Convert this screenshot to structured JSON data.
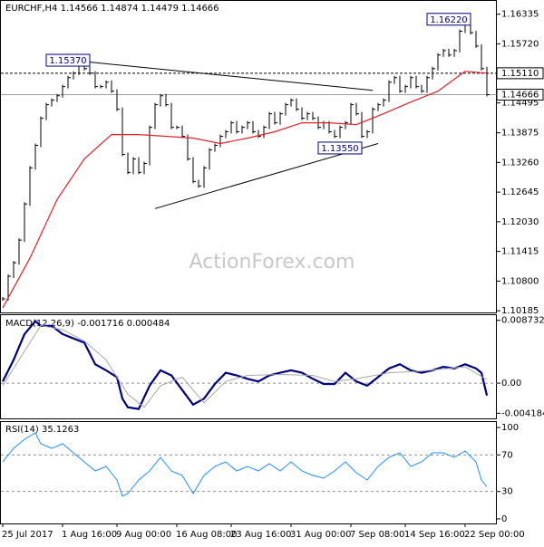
{
  "chart_data": [
    {
      "type": "price-bars",
      "title": "EURCHF,H4 1.14566 1.14874 1.14479 1.14666",
      "watermark": "ActionForex.com",
      "categories": [
        "25 Jul 2017",
        null,
        null,
        null,
        null,
        null,
        null,
        null,
        null,
        null,
        null,
        "1 Aug 16:00",
        null,
        null,
        null,
        null,
        null,
        null,
        null,
        null,
        null,
        "9 Aug 00:00",
        null,
        null,
        null,
        null,
        null,
        null,
        null,
        null,
        null,
        null,
        "16 Aug 08:00",
        null,
        null,
        null,
        null,
        null,
        null,
        null,
        null,
        null,
        "23 Aug 16:00",
        null,
        null,
        null,
        null,
        null,
        null,
        null,
        null,
        null,
        null,
        "31 Aug 00:00",
        null,
        null,
        null,
        null,
        null,
        null,
        null,
        null,
        null,
        null,
        "7 Sep 08:00",
        null,
        null,
        null,
        null,
        null,
        null,
        null,
        null,
        null,
        "14 Sep 16:00",
        null,
        null,
        null,
        null,
        null,
        null,
        null,
        null,
        null,
        null,
        "22 Sep 00:00",
        null,
        null,
        null,
        null
      ],
      "values": [
        1.10432,
        1.109,
        1.11181,
        1.11649,
        1.12398,
        1.13147,
        1.13615,
        1.14176,
        1.14457,
        1.14551,
        1.14644,
        1.14832,
        1.15019,
        1.15112,
        1.153,
        1.15206,
        1.15112,
        1.14832,
        1.14832,
        1.14925,
        1.14738,
        1.14364,
        1.13428,
        1.13053,
        1.13334,
        1.13053,
        1.1324,
        1.13989,
        1.14457,
        1.14644,
        1.14457,
        1.13989,
        1.13989,
        1.13802,
        1.13334,
        1.12866,
        1.12772,
        1.13147,
        1.13521,
        1.13615,
        1.13802,
        1.13896,
        1.14083,
        1.13896,
        1.13989,
        1.14083,
        1.13896,
        1.13802,
        1.13989,
        1.1427,
        1.14083,
        1.1427,
        1.14457,
        1.14551,
        1.14364,
        1.14176,
        1.1427,
        1.14176,
        1.13989,
        1.14083,
        1.13896,
        1.13802,
        1.13989,
        1.14083,
        1.14457,
        1.1427,
        1.13802,
        1.13896,
        1.14364,
        1.14457,
        1.14551,
        1.14925,
        1.15019,
        1.14738,
        1.14832,
        1.15019,
        1.14832,
        1.14738,
        1.15019,
        1.15206,
        1.15487,
        1.1558,
        1.15487,
        1.1558,
        1.1598,
        1.1612,
        1.1595,
        1.15674,
        1.15206,
        1.14666
      ],
      "color": "#000000",
      "ma": {
        "color": "#e0232a",
        "x": [
          0,
          5,
          10,
          15,
          20,
          25,
          30,
          35,
          40,
          45,
          50,
          55,
          60,
          65,
          70,
          75,
          80,
          85,
          89
        ],
        "values": [
          1.10245,
          1.11275,
          1.12492,
          1.13334,
          1.13839,
          1.13839,
          1.13802,
          1.13765,
          1.13652,
          1.13765,
          1.13896,
          1.14083,
          1.14083,
          1.14045,
          1.1427,
          1.14513,
          1.14738,
          1.1515,
          1.15112
        ]
      },
      "trendlines": [
        {
          "x": [
            13,
            68
          ],
          "values": [
            1.15375,
            1.14757
          ]
        },
        {
          "x": [
            28,
            69
          ],
          "values": [
            1.12304,
            1.13652
          ]
        }
      ],
      "annotations": [
        {
          "x": 12,
          "value": 1.1537,
          "label": "1.15370"
        },
        {
          "x": 62,
          "value": 1.1355,
          "label": "1.13550"
        },
        {
          "x": 82,
          "value": 1.1622,
          "label": "1.16220"
        }
      ],
      "levels": [
        {
          "value": 1.1511,
          "label": "1.15110",
          "dashed": true
        },
        {
          "value": 1.14666,
          "dashed": false
        }
      ],
      "ylim": [
        1.1015,
        1.1661
      ],
      "yticks": [
        1.16335,
        {
          "value": 1.1572,
          "label": "1.15720"
        },
        1.14495,
        1.13875,
        {
          "value": 1.1326,
          "label": "1.13260"
        },
        1.12645,
        {
          "value": 1.1203,
          "label": "1.12030"
        },
        1.11415,
        {
          "value": 1.108,
          "label": "1.10800"
        },
        1.10185
      ],
      "grid": false
    },
    {
      "type": "line",
      "title": "MACD(12,26,9) -0.001716 0.000484",
      "series": [
        {
          "color": "#000080",
          "width": 2.2,
          "x": [
            0,
            2,
            4,
            6,
            7,
            9,
            11,
            13,
            15,
            17,
            19,
            21,
            22,
            23,
            25,
            27,
            29,
            31,
            33,
            35,
            37,
            39,
            41,
            43,
            45,
            47,
            49,
            51,
            53,
            55,
            57,
            59,
            61,
            63,
            65,
            67,
            69,
            71,
            73,
            75,
            77,
            79,
            81,
            83,
            85,
            87,
            88,
            89
          ],
          "values": [
            0.00024,
            0.00323,
            0.00682,
            0.00861,
            0.00796,
            0.00796,
            0.00682,
            0.00622,
            0.00562,
            0.00263,
            0.00179,
            0.00084,
            -0.00215,
            -0.00335,
            -0.00359,
            -0.00036,
            0.00179,
            0.00108,
            -0.00096,
            -0.00299,
            -0.00215,
            -0.00012,
            0.00144,
            0.00108,
            0.0006,
            0.00024,
            0.00108,
            0.00144,
            0.00179,
            0.00144,
            0.0006,
            -0.00012,
            -0.00012,
            0.00144,
            0.00024,
            -0.00036,
            0.00084,
            0.00203,
            0.00263,
            0.00179,
            0.00144,
            0.00179,
            0.00227,
            0.00203,
            0.00263,
            0.00203,
            0.00144,
            -0.001716
          ]
        },
        {
          "color": "#a8a8a8",
          "width": 1,
          "x": [
            0,
            4,
            7,
            11,
            15,
            19,
            23,
            26,
            29,
            33,
            37,
            41,
            45,
            51,
            57,
            61,
            65,
            71,
            77,
            85,
            89
          ],
          "values": [
            -0.00036,
            0.00443,
            0.00801,
            0.00742,
            0.00586,
            0.00323,
            -0.00155,
            -0.00335,
            -0.00036,
            0.00084,
            -0.00275,
            0.00024,
            0.00108,
            0.0012,
            0.00108,
            0.00024,
            0.0006,
            0.00144,
            0.00167,
            0.00227,
            0.000484
          ]
        }
      ],
      "ylim": [
        -0.0049,
        0.00945
      ],
      "yticks": [
        0.008732,
        {
          "value": 0,
          "label": "0.00"
        },
        -0.004184
      ],
      "grid": "inner"
    },
    {
      "type": "line",
      "title": "RSI(14) 35.1263",
      "series": [
        {
          "color": "#1e90ff",
          "width": 1,
          "x": [
            0,
            2,
            4,
            6,
            7,
            9,
            11,
            13,
            15,
            17,
            19,
            21,
            22,
            23,
            25,
            27,
            29,
            31,
            33,
            35,
            37,
            39,
            41,
            43,
            45,
            47,
            49,
            51,
            53,
            55,
            57,
            59,
            61,
            63,
            65,
            67,
            69,
            71,
            73,
            75,
            77,
            79,
            81,
            83,
            85,
            87,
            88,
            89
          ],
          "values": [
            62.4,
            77.2,
            87.1,
            94.1,
            82.2,
            77.2,
            82.2,
            72.3,
            62.4,
            52.5,
            57.4,
            42.6,
            24.8,
            27.7,
            42.6,
            52.5,
            67.3,
            52.5,
            47.5,
            27.7,
            47.5,
            57.4,
            62.4,
            52.5,
            57.4,
            52.5,
            60.4,
            52.5,
            62.4,
            52.5,
            47.5,
            44.6,
            52.5,
            62.4,
            50.5,
            42.6,
            57.4,
            67.3,
            72.3,
            57.4,
            62.4,
            72.3,
            72.3,
            67.3,
            74.3,
            62.4,
            42.6,
            35.1263
          ]
        }
      ],
      "ylim": [
        -5,
        106
      ],
      "yticks": [
        100,
        70,
        30,
        0
      ],
      "grid": "inner"
    }
  ]
}
